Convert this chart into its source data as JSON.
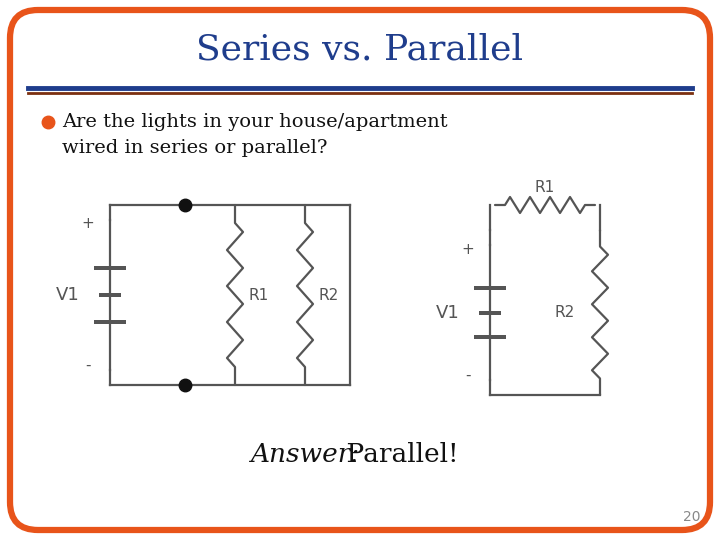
{
  "title": "Series vs. Parallel",
  "title_color": "#1F3D8C",
  "title_fontsize": 26,
  "bullet_text_line1": "●Are the lights in your house/apartment",
  "bullet_text_line2": "wired in series or parallel?",
  "bullet_color": "#E8541A",
  "text_color": "#111111",
  "answer_italic": "Answer:",
  "answer_normal": " Parallel!",
  "answer_fontsize": 19,
  "border_color": "#E8541A",
  "separator_color1": "#1F3D8C",
  "separator_color2": "#7B3010",
  "background_color": "#FFFFFF",
  "page_number": "20",
  "circuit_color": "#555555",
  "node_color": "#111111"
}
